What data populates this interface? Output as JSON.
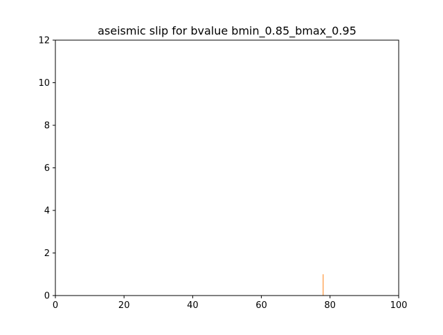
{
  "chart_data": {
    "type": "bar",
    "title": "aseismic slip for bvalue bmin_0.85_bmax_0.95",
    "xlabel": "",
    "ylabel": "",
    "xlim": [
      0,
      100
    ],
    "ylim": [
      0,
      12
    ],
    "xticks": [
      0,
      20,
      40,
      60,
      80,
      100
    ],
    "yticks": [
      0,
      2,
      4,
      6,
      8,
      10,
      12
    ],
    "grid": false,
    "series": [
      {
        "color": "#ff7f0e",
        "x": [
          78
        ],
        "values": [
          1
        ]
      }
    ]
  }
}
